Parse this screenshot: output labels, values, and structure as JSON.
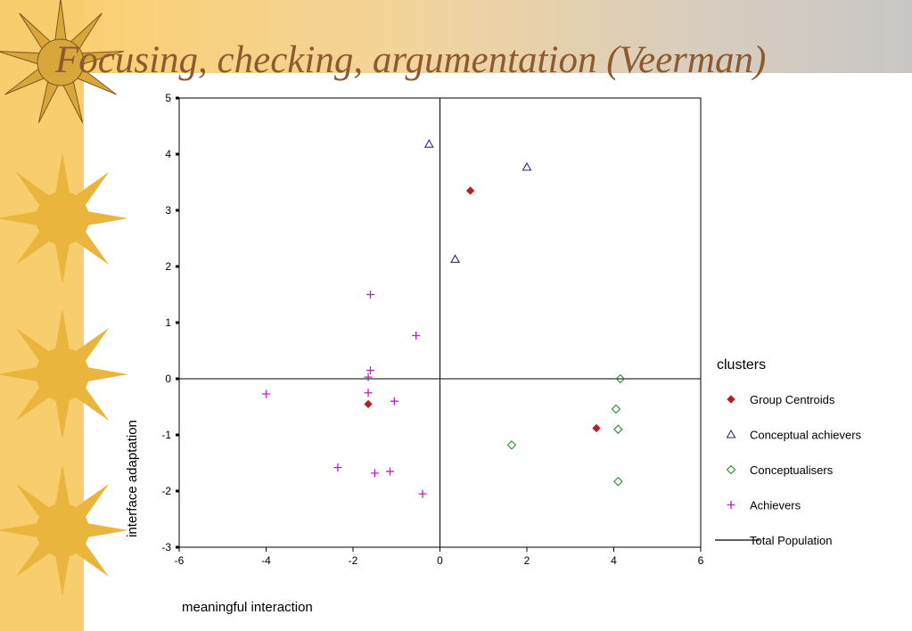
{
  "slide": {
    "title": "Focusing, checking, argumentation (Veerman)",
    "colors": {
      "left_band": "#f7cd6e",
      "title": "#8c5a2e",
      "sun": "#e9b53c"
    }
  },
  "chart_data": {
    "type": "scatter",
    "title": "",
    "xlabel": "meaningful interaction",
    "ylabel": "interface adaptation",
    "xlim": [
      -6,
      6
    ],
    "ylim": [
      -3,
      5
    ],
    "x_ticks": [
      -6,
      -4,
      -2,
      0,
      2,
      4,
      6
    ],
    "y_ticks": [
      -3,
      -2,
      -1,
      0,
      1,
      2,
      3,
      4,
      5
    ],
    "reference_lines": {
      "x": 0,
      "y": 0
    },
    "grid": false,
    "legend": {
      "title": "clusters",
      "position": "right"
    },
    "series": [
      {
        "name": "Group Centroids",
        "marker": "diamond-filled",
        "color": "#b22222",
        "points": [
          [
            0.7,
            3.35
          ],
          [
            -1.65,
            -0.45
          ],
          [
            3.6,
            -0.88
          ]
        ]
      },
      {
        "name": "Conceptual achievers",
        "marker": "triangle",
        "color": "#2a2a8a",
        "points": [
          [
            -0.25,
            4.18
          ],
          [
            2.0,
            3.77
          ],
          [
            0.35,
            2.13
          ]
        ]
      },
      {
        "name": "Conceptualisers",
        "marker": "diamond",
        "color": "#2e8b2e",
        "points": [
          [
            4.15,
            0.0
          ],
          [
            4.05,
            -0.54
          ],
          [
            4.1,
            -0.9
          ],
          [
            1.65,
            -1.18
          ],
          [
            4.1,
            -1.83
          ]
        ]
      },
      {
        "name": "Achievers",
        "marker": "plus",
        "color": "#c020c0",
        "points": [
          [
            -1.6,
            1.5
          ],
          [
            -0.55,
            0.77
          ],
          [
            -1.6,
            0.15
          ],
          [
            -1.65,
            0.03
          ],
          [
            -4.0,
            -0.27
          ],
          [
            -1.65,
            -0.25
          ],
          [
            -1.05,
            -0.4
          ],
          [
            -2.35,
            -1.58
          ],
          [
            -1.5,
            -1.68
          ],
          [
            -1.15,
            -1.65
          ],
          [
            -0.4,
            -2.05
          ]
        ]
      },
      {
        "name": "Total Population",
        "marker": "line",
        "color": "#000000",
        "points": []
      }
    ]
  }
}
